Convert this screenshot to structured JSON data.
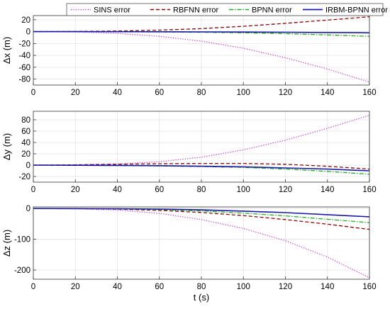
{
  "legend": {
    "placement": "top",
    "entries": [
      {
        "label": "SINS error",
        "color": "#c832d2",
        "style": "dotted"
      },
      {
        "label": "RBFNN error",
        "color": "#8b0000",
        "style": "dashed"
      },
      {
        "label": "BPNN error",
        "color": "#22aa22",
        "style": "dashdot"
      },
      {
        "label": "IRBM-BPNN error",
        "color": "#1a1aa6",
        "style": "solid"
      }
    ]
  },
  "chart_data": [
    {
      "type": "line",
      "ylabel": "Δx (m)",
      "xlabel": "",
      "xlim": [
        0,
        160
      ],
      "ylim": [
        -90,
        27
      ],
      "xticks": [
        0,
        20,
        40,
        60,
        80,
        100,
        120,
        140,
        160
      ],
      "yticks": [
        -80,
        -60,
        -40,
        -20,
        0,
        20
      ],
      "grid": true,
      "x": [
        0,
        20,
        40,
        60,
        80,
        100,
        120,
        140,
        160
      ],
      "series": [
        {
          "name": "SINS error",
          "values": [
            0,
            -0.5,
            -3,
            -8,
            -16,
            -28,
            -44,
            -63,
            -85
          ]
        },
        {
          "name": "RBFNN error",
          "values": [
            0,
            0.3,
            1,
            2.5,
            5,
            9,
            14,
            19.5,
            25
          ]
        },
        {
          "name": "BPNN error",
          "values": [
            0,
            0,
            -0.2,
            -0.5,
            -1,
            -2,
            -3.5,
            -5.5,
            -8
          ]
        },
        {
          "name": "IRBM-BPNN error",
          "values": [
            0,
            0,
            -0.1,
            -0.2,
            -0.4,
            -0.7,
            -1.1,
            -1.5,
            -2
          ]
        }
      ]
    },
    {
      "type": "line",
      "ylabel": "Δy (m)",
      "xlabel": "",
      "xlim": [
        0,
        160
      ],
      "ylim": [
        -30,
        95
      ],
      "xticks": [
        0,
        20,
        40,
        60,
        80,
        100,
        120,
        140,
        160
      ],
      "yticks": [
        -20,
        0,
        20,
        40,
        60,
        80
      ],
      "grid": true,
      "x": [
        0,
        20,
        40,
        60,
        80,
        100,
        120,
        140,
        160
      ],
      "series": [
        {
          "name": "SINS error",
          "values": [
            0,
            0.5,
            2,
            6,
            14,
            27,
            44,
            65,
            88
          ]
        },
        {
          "name": "RBFNN error",
          "values": [
            0,
            0.5,
            1.5,
            2.5,
            3,
            3,
            1.5,
            -2,
            -7
          ]
        },
        {
          "name": "BPNN error",
          "values": [
            0,
            -0.3,
            -0.8,
            -1.5,
            -2.5,
            -4,
            -7,
            -11,
            -16
          ]
        },
        {
          "name": "IRBM-BPNN error",
          "values": [
            0,
            -0.2,
            -0.5,
            -1,
            -2,
            -3,
            -5,
            -7,
            -10
          ]
        }
      ]
    },
    {
      "type": "line",
      "ylabel": "Δz (m)",
      "xlabel": "t (s)",
      "xlim": [
        0,
        160
      ],
      "ylim": [
        -230,
        5
      ],
      "xticks": [
        0,
        20,
        40,
        60,
        80,
        100,
        120,
        140,
        160
      ],
      "yticks": [
        -200,
        -100,
        0
      ],
      "grid": true,
      "x": [
        0,
        20,
        40,
        60,
        80,
        100,
        120,
        140,
        160
      ],
      "series": [
        {
          "name": "SINS error",
          "values": [
            0,
            -1,
            -5,
            -16,
            -36,
            -65,
            -105,
            -158,
            -225
          ]
        },
        {
          "name": "RBFNN error",
          "values": [
            0,
            -0.5,
            -2,
            -6,
            -13,
            -23,
            -36,
            -51,
            -68
          ]
        },
        {
          "name": "BPNN error",
          "values": [
            0,
            -0.3,
            -1.2,
            -3.5,
            -8,
            -15,
            -24,
            -35,
            -46
          ]
        },
        {
          "name": "IRBM-BPNN error",
          "values": [
            0,
            -0.2,
            -0.8,
            -2,
            -4.5,
            -8.5,
            -13.5,
            -20,
            -27
          ]
        }
      ]
    }
  ]
}
